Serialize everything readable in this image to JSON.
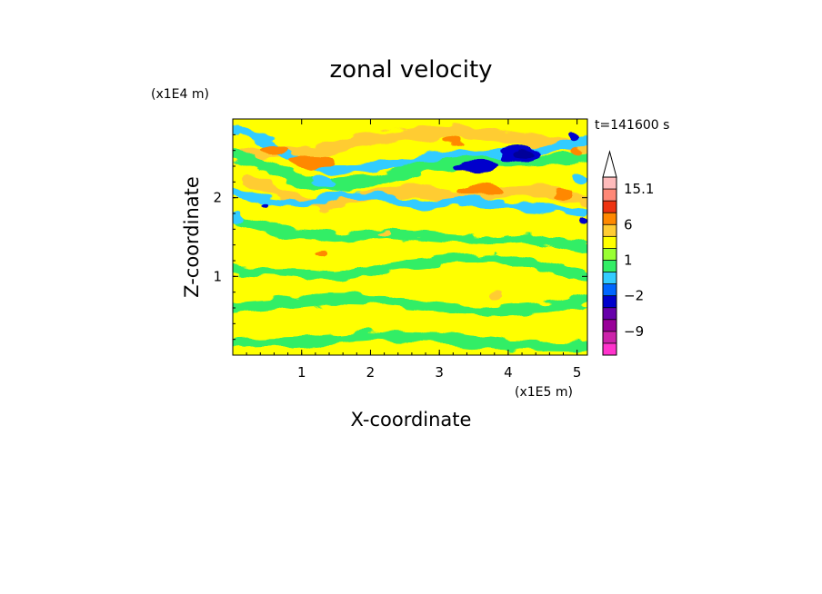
{
  "chart_data": {
    "type": "heatmap",
    "title": "zonal velocity",
    "xlabel": "X-coordinate",
    "ylabel": "Z-coordinate",
    "x_unit": "(x1E5 m)",
    "y_unit": "(x1E4 m)",
    "time_label": "t=141600 s",
    "xlim": [
      0,
      5.15
    ],
    "ylim": [
      0,
      3.0
    ],
    "x_ticks": [
      "1",
      "2",
      "3",
      "4",
      "5"
    ],
    "x_tick_values": [
      1,
      2,
      3,
      4,
      5
    ],
    "y_ticks": [
      "1",
      "2"
    ],
    "y_tick_values": [
      1,
      2
    ],
    "colorbar": {
      "levels": [
        -15,
        -12,
        -9,
        -6,
        -3,
        -2,
        -1,
        0,
        1,
        2,
        3,
        6,
        9,
        12,
        15.1
      ],
      "colors": [
        "#ff33cc",
        "#cc22aa",
        "#990099",
        "#6600aa",
        "#0000cc",
        "#0066ff",
        "#33ccff",
        "#33ee66",
        "#99ff33",
        "#ffff00",
        "#ffcc33",
        "#ff8800",
        "#ee3311",
        "#ff8877",
        "#ffbbbb"
      ],
      "top_arrow_color": "#ffffff",
      "labels": [
        "15.1",
        "6",
        "1",
        "−2",
        "−9"
      ],
      "label_values": [
        15.1,
        6,
        1,
        -2,
        -9
      ]
    },
    "bands": [
      {
        "name": "green",
        "color": "#33ee66",
        "value": -0.5
      },
      {
        "name": "yellow",
        "color": "#ffff00",
        "value": 0.5
      },
      {
        "name": "light-orange",
        "color": "#ffcc33",
        "value": 2.5
      },
      {
        "name": "orange",
        "color": "#ff8800",
        "value": 4.5
      },
      {
        "name": "cyan",
        "color": "#33ccff",
        "value": -1.5
      },
      {
        "name": "blue",
        "color": "#0000cc",
        "value": -4.5
      },
      {
        "name": "dark-blue",
        "color": "#000099",
        "value": -8
      }
    ],
    "field_features": [
      {
        "kind": "band",
        "value": 0.5,
        "points": [
          [
            0,
            2.95
          ],
          [
            1.5,
            2.85
          ],
          [
            3,
            2.8
          ],
          [
            4.2,
            2.9
          ],
          [
            5.15,
            2.95
          ]
        ],
        "thickness": 0.22
      },
      {
        "kind": "band",
        "value": 2.5,
        "points": [
          [
            0.1,
            2.52
          ],
          [
            0.7,
            2.6
          ],
          [
            1.2,
            2.55
          ],
          [
            1.8,
            2.72
          ],
          [
            2.6,
            2.8
          ],
          [
            3.2,
            2.85
          ],
          [
            3.8,
            2.8
          ],
          [
            4.4,
            2.7
          ],
          [
            5.15,
            2.65
          ]
        ],
        "thickness": 0.16
      },
      {
        "kind": "band",
        "value": -1.5,
        "points": [
          [
            0.1,
            2.88
          ],
          [
            0.5,
            2.7
          ],
          [
            0.9,
            2.5
          ],
          [
            1.4,
            2.35
          ],
          [
            2.0,
            2.4
          ],
          [
            2.6,
            2.45
          ],
          [
            3.2,
            2.55
          ],
          [
            3.8,
            2.55
          ],
          [
            4.3,
            2.58
          ],
          [
            4.8,
            2.65
          ],
          [
            5.15,
            2.75
          ]
        ],
        "thickness": 0.12
      },
      {
        "kind": "band",
        "value": -0.5,
        "points": [
          [
            0,
            2.55
          ],
          [
            0.6,
            2.35
          ],
          [
            1.2,
            2.15
          ],
          [
            2.0,
            2.2
          ],
          [
            2.8,
            2.4
          ],
          [
            3.5,
            2.45
          ],
          [
            4.2,
            2.45
          ],
          [
            5.15,
            2.5
          ]
        ],
        "thickness": 0.14
      },
      {
        "kind": "band",
        "value": 2.5,
        "points": [
          [
            0.2,
            2.25
          ],
          [
            0.7,
            2.05
          ],
          [
            1.3,
            1.9
          ],
          [
            1.8,
            2.0
          ],
          [
            2.5,
            2.1
          ],
          [
            3.2,
            2.0
          ],
          [
            3.8,
            2.05
          ],
          [
            4.5,
            2.1
          ],
          [
            5.15,
            1.95
          ]
        ],
        "thickness": 0.14
      },
      {
        "kind": "band",
        "value": -1.5,
        "points": [
          [
            0,
            2.1
          ],
          [
            0.5,
            1.95
          ],
          [
            1.0,
            1.9
          ],
          [
            1.6,
            2.05
          ],
          [
            2.2,
            2.0
          ],
          [
            2.8,
            1.9
          ],
          [
            3.4,
            1.95
          ],
          [
            4.0,
            1.9
          ],
          [
            4.8,
            1.85
          ],
          [
            5.15,
            1.8
          ]
        ],
        "thickness": 0.1
      },
      {
        "kind": "band",
        "value": -0.5,
        "points": [
          [
            0,
            1.75
          ],
          [
            0.8,
            1.55
          ],
          [
            1.5,
            1.5
          ],
          [
            2.2,
            1.55
          ],
          [
            2.9,
            1.5
          ],
          [
            3.6,
            1.45
          ],
          [
            4.3,
            1.5
          ],
          [
            5.15,
            1.35
          ]
        ],
        "thickness": 0.12
      },
      {
        "kind": "band",
        "value": -0.5,
        "points": [
          [
            0,
            1.1
          ],
          [
            0.8,
            1.05
          ],
          [
            1.5,
            1.0
          ],
          [
            2.2,
            1.1
          ],
          [
            3.0,
            1.2
          ],
          [
            3.8,
            1.25
          ],
          [
            4.6,
            1.1
          ],
          [
            5.15,
            1.0
          ]
        ],
        "thickness": 0.11
      },
      {
        "kind": "band",
        "value": -0.5,
        "points": [
          [
            0,
            0.6
          ],
          [
            0.7,
            0.65
          ],
          [
            1.4,
            0.72
          ],
          [
            2.2,
            0.7
          ],
          [
            3.0,
            0.62
          ],
          [
            3.7,
            0.55
          ],
          [
            4.5,
            0.6
          ],
          [
            5.15,
            0.7
          ]
        ],
        "thickness": 0.13
      },
      {
        "kind": "band",
        "value": -0.5,
        "points": [
          [
            0,
            0.15
          ],
          [
            1.0,
            0.18
          ],
          [
            2.0,
            0.25
          ],
          [
            3.0,
            0.22
          ],
          [
            4.0,
            0.12
          ],
          [
            5.15,
            0.1
          ]
        ],
        "thickness": 0.12
      },
      {
        "kind": "blob",
        "value": 4.5,
        "x": 1.15,
        "y": 2.45,
        "rx": 0.32,
        "ry": 0.1
      },
      {
        "kind": "blob",
        "value": 4.5,
        "x": 0.6,
        "y": 2.62,
        "rx": 0.2,
        "ry": 0.07
      },
      {
        "kind": "blob",
        "value": 4.5,
        "x": 3.6,
        "y": 2.1,
        "rx": 0.35,
        "ry": 0.08
      },
      {
        "kind": "blob",
        "value": 4.5,
        "x": 4.8,
        "y": 2.05,
        "rx": 0.15,
        "ry": 0.06
      },
      {
        "kind": "blob",
        "value": 4.5,
        "x": 5.0,
        "y": 2.6,
        "rx": 0.1,
        "ry": 0.05
      },
      {
        "kind": "blob",
        "value": 4.5,
        "x": 3.2,
        "y": 2.72,
        "rx": 0.14,
        "ry": 0.05
      },
      {
        "kind": "blob",
        "value": 4.5,
        "x": 1.3,
        "y": 1.3,
        "rx": 0.08,
        "ry": 0.05
      },
      {
        "kind": "blob",
        "value": 2.5,
        "x": 3.85,
        "y": 0.75,
        "rx": 0.12,
        "ry": 0.06
      },
      {
        "kind": "blob",
        "value": 2.5,
        "x": 2.2,
        "y": 1.55,
        "rx": 0.1,
        "ry": 0.04
      },
      {
        "kind": "blob",
        "value": -4.5,
        "x": 3.55,
        "y": 2.4,
        "rx": 0.3,
        "ry": 0.07
      },
      {
        "kind": "blob",
        "value": -4.5,
        "x": 4.2,
        "y": 2.55,
        "rx": 0.3,
        "ry": 0.09
      },
      {
        "kind": "blob",
        "value": -8,
        "x": 4.25,
        "y": 2.56,
        "rx": 0.14,
        "ry": 0.05
      },
      {
        "kind": "blob",
        "value": -4.5,
        "x": 4.95,
        "y": 2.78,
        "rx": 0.08,
        "ry": 0.05
      },
      {
        "kind": "blob",
        "value": -4.5,
        "x": 5.1,
        "y": 1.7,
        "rx": 0.05,
        "ry": 0.04
      },
      {
        "kind": "blob",
        "value": -4.5,
        "x": 0.45,
        "y": 1.9,
        "rx": 0.04,
        "ry": 0.03
      },
      {
        "kind": "blob",
        "value": -1.5,
        "x": 0.05,
        "y": 1.75,
        "rx": 0.1,
        "ry": 0.07
      },
      {
        "kind": "blob",
        "value": -1.5,
        "x": 5.05,
        "y": 2.25,
        "rx": 0.1,
        "ry": 0.05
      },
      {
        "kind": "blob",
        "value": -1.5,
        "x": 1.3,
        "y": 2.2,
        "rx": 0.15,
        "ry": 0.06
      },
      {
        "kind": "blob",
        "value": -1.5,
        "x": 2.8,
        "y": 2.5,
        "rx": 0.2,
        "ry": 0.06
      },
      {
        "kind": "blob",
        "value": -1.5,
        "x": 0.05,
        "y": 2.85,
        "rx": 0.08,
        "ry": 0.07
      }
    ]
  }
}
